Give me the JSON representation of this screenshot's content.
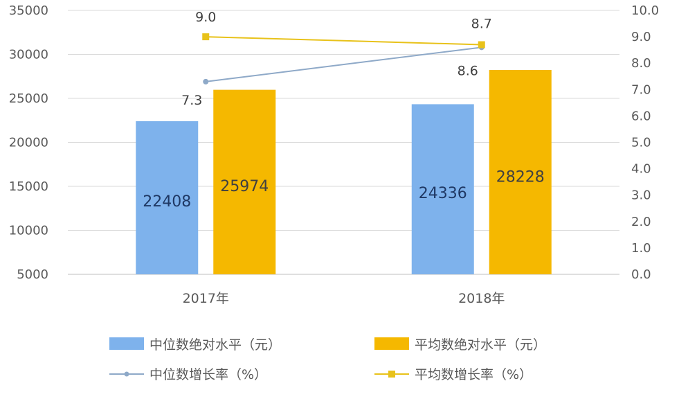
{
  "chart_data": {
    "type": "bar",
    "categories": [
      "2017年",
      "2018年"
    ],
    "series": [
      {
        "name": "中位数绝对水平（元）",
        "kind": "bar",
        "axis": "left",
        "color": "#7EB2EC",
        "label_color": "#1F3864",
        "values": [
          22408,
          24336
        ]
      },
      {
        "name": "平均数绝对水平（元）",
        "kind": "bar",
        "axis": "left",
        "color": "#F5B800",
        "label_color": "#404040",
        "values": [
          25974,
          28228
        ]
      },
      {
        "name": "中位数增长率（%）",
        "kind": "line",
        "axis": "right",
        "color": "#8EA9C8",
        "values": [
          7.3,
          8.6
        ]
      },
      {
        "name": "平均数增长率（%）",
        "kind": "line",
        "axis": "right",
        "color": "#E8C21A",
        "values": [
          9.0,
          8.7
        ]
      }
    ],
    "value_labels": {
      "bars": [
        "22408",
        "24336",
        "25974",
        "28228"
      ],
      "median_growth": [
        "7.3",
        "8.6"
      ],
      "mean_growth": [
        "9.0",
        "8.7"
      ]
    },
    "left_axis": {
      "ylim": [
        5000,
        35000
      ],
      "ticks": [
        "5000",
        "10000",
        "15000",
        "20000",
        "25000",
        "30000",
        "35000"
      ]
    },
    "right_axis": {
      "ylim": [
        0,
        10
      ],
      "ticks": [
        "0.0",
        "1.0",
        "2.0",
        "3.0",
        "4.0",
        "5.0",
        "6.0",
        "7.0",
        "8.0",
        "9.0",
        "10.0"
      ]
    },
    "grid": true,
    "legend_position": "bottom"
  }
}
